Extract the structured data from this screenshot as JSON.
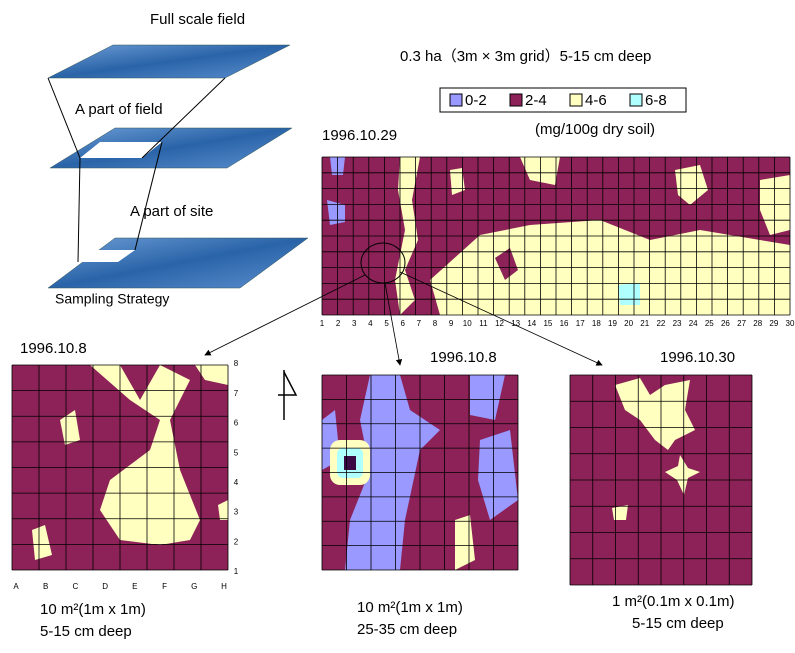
{
  "strategy": {
    "full_scale": "Full scale field",
    "part_field": "A part of field",
    "part_site": "A part of site",
    "caption": "Sampling Strategy"
  },
  "header": {
    "title": "0.3 ha（3m × 3m grid）5-15 cm deep",
    "legend": [
      "0-2",
      "2-4",
      "4-6",
      "6-8"
    ],
    "unit": "(mg/100g dry soil)"
  },
  "main_map": {
    "date": "1996.10.29",
    "x_labels": [
      "1",
      "2",
      "3",
      "4",
      "5",
      "6",
      "7",
      "8",
      "9",
      "10",
      "11",
      "12",
      "13",
      "14",
      "15",
      "16",
      "17",
      "18",
      "19",
      "20",
      "21",
      "22",
      "23",
      "24",
      "25",
      "26",
      "27",
      "28",
      "29",
      "30"
    ]
  },
  "left_map": {
    "date": "1996.10.8",
    "x_labels": [
      "A",
      "B",
      "C",
      "D",
      "E",
      "F",
      "G",
      "H"
    ],
    "y_labels": [
      "1",
      "2",
      "3",
      "4",
      "5",
      "6",
      "7",
      "8"
    ],
    "caption_1": "10 m²(1m x 1m)",
    "caption_2": "5-15 cm deep"
  },
  "middle_map": {
    "date": "1996.10.8",
    "caption_1": "10 m²(1m x 1m)",
    "caption_2": "25-35 cm deep"
  },
  "right_map": {
    "date": "1996.10.30",
    "caption_1": "1 m²(0.1m x 0.1m)",
    "caption_2": "5-15 cm deep"
  }
}
